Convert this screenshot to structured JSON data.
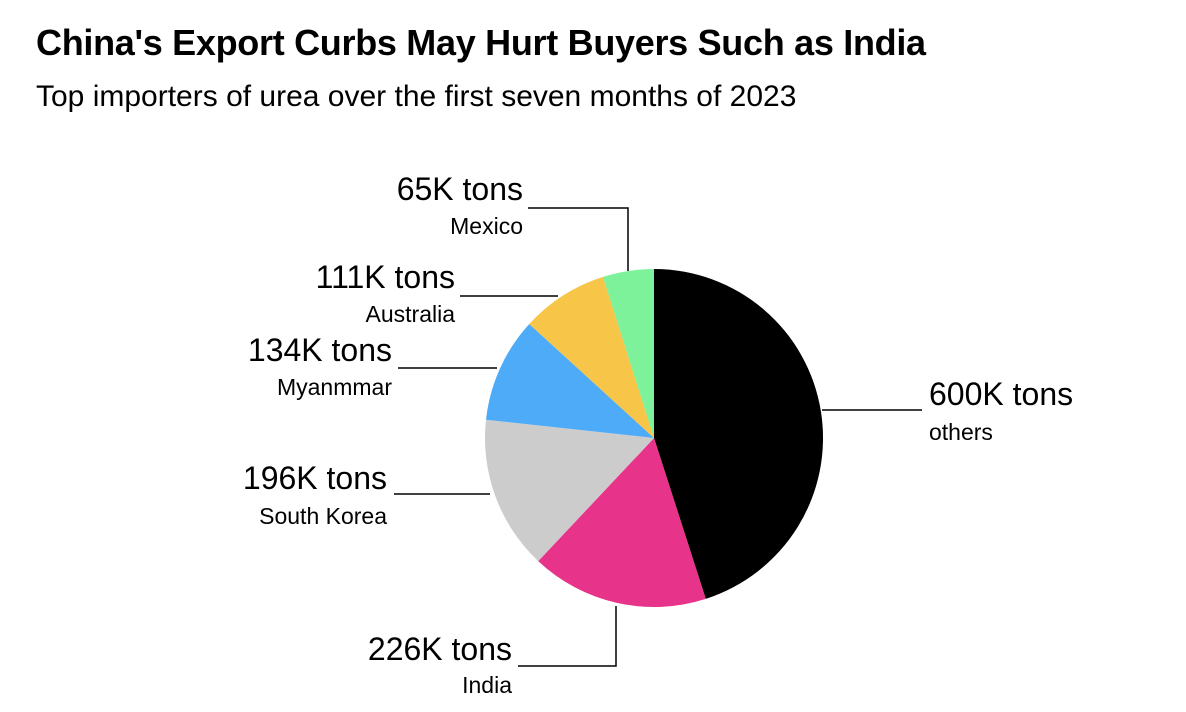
{
  "title": "China's Export Curbs May Hurt Buyers Such as India",
  "subtitle": "Top importers of urea over the first seven months of 2023",
  "chart_data": {
    "type": "pie",
    "title": "China's Export Curbs May Hurt Buyers Such as India",
    "subtitle": "Top importers of urea over the first seven months of 2023",
    "unit": "K tons",
    "start": "12 o'clock",
    "direction": "clockwise",
    "slices": [
      {
        "name": "others",
        "value": 600,
        "label": "600K tons",
        "color": "#000000"
      },
      {
        "name": "India",
        "value": 226,
        "label": "226K tons",
        "color": "#E8338B"
      },
      {
        "name": "South Korea",
        "value": 196,
        "label": "196K tons",
        "color": "#CCCCCC"
      },
      {
        "name": "Myanmmar",
        "value": 134,
        "label": "134K tons",
        "color": "#4DABF7"
      },
      {
        "name": "Australia",
        "value": 111,
        "label": "111K tons",
        "color": "#F7C548"
      },
      {
        "name": "Mexico",
        "value": 65,
        "label": "65K tons",
        "color": "#7DF29A"
      }
    ]
  }
}
